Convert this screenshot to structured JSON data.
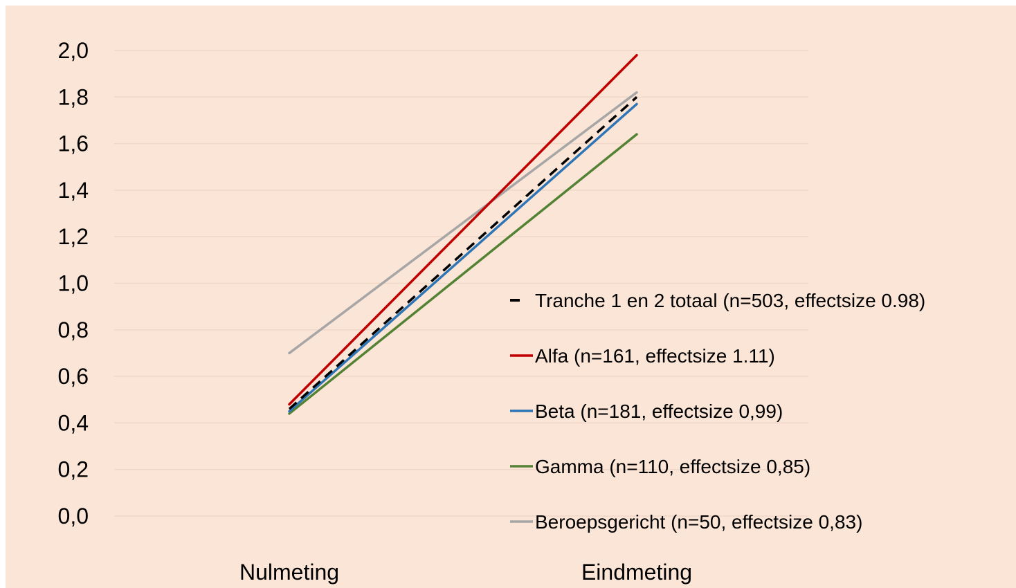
{
  "chart_data": {
    "type": "line",
    "title": "",
    "xlabel": "",
    "ylabel": "",
    "categories": [
      "Nulmeting",
      "Eindmeting"
    ],
    "ylim": [
      0,
      2.0
    ],
    "y_ticks": [
      "0,0",
      "0,2",
      "0,4",
      "0,6",
      "0,8",
      "1,0",
      "1,2",
      "1,4",
      "1,6",
      "1,8",
      "2,0"
    ],
    "grid": true,
    "legend_position": "right",
    "series": [
      {
        "name": "Tranche 1 en 2 totaal (n=503, effectsize 0.98)",
        "values": [
          0.46,
          1.8
        ],
        "color": "#000000",
        "dashed": true
      },
      {
        "name": "Alfa (n=161, effectsize 1.11)",
        "values": [
          0.48,
          1.98
        ],
        "color": "#c00000",
        "dashed": false
      },
      {
        "name": "Beta (n=181, effectsize 0,99)",
        "values": [
          0.45,
          1.77
        ],
        "color": "#2e75b6",
        "dashed": false
      },
      {
        "name": "Gamma (n=110, effectsize 0,85)",
        "values": [
          0.44,
          1.64
        ],
        "color": "#548235",
        "dashed": false
      },
      {
        "name": "Beroepsgericht (n=50, effectsize 0,83)",
        "values": [
          0.7,
          1.82
        ],
        "color": "#a6a6a6",
        "dashed": false
      }
    ]
  }
}
